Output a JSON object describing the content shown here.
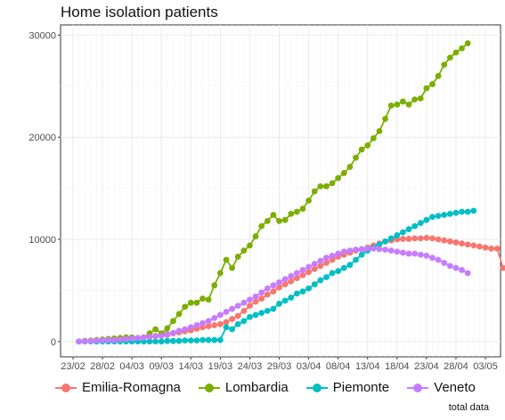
{
  "chart_data": {
    "type": "line",
    "title": "Home isolation patients",
    "caption": "total data",
    "xlabel": "",
    "ylabel": "",
    "ylim": [
      -1500,
      31000
    ],
    "y_ticks": [
      0,
      10000,
      20000,
      30000
    ],
    "x_tick_labels": [
      "23/02",
      "28/02",
      "04/03",
      "09/03",
      "14/03",
      "19/03",
      "24/03",
      "29/03",
      "03/04",
      "08/04",
      "13/04",
      "18/04",
      "23/04",
      "28/04",
      "03/05"
    ],
    "x_start_date": "2020-02-24",
    "grid": true,
    "legend_position": "bottom",
    "series": [
      {
        "name": "Emilia-Romagna",
        "color": "#F8766D",
        "values": [
          0,
          0,
          50,
          100,
          120,
          150,
          200,
          250,
          300,
          300,
          350,
          400,
          450,
          550,
          650,
          750,
          800,
          900,
          1000,
          1100,
          1250,
          1400,
          1500,
          1600,
          1700,
          1900,
          2200,
          2500,
          3000,
          3500,
          3900,
          4200,
          4600,
          4900,
          5300,
          5600,
          5900,
          6200,
          6500,
          6800,
          7100,
          7400,
          7700,
          8000,
          8300,
          8500,
          8700,
          8900,
          9000,
          9200,
          9400,
          9600,
          9800,
          9900,
          10000,
          10050,
          10050,
          10100,
          10100,
          10150,
          10100,
          10000,
          9900,
          9800,
          9700,
          9600,
          9500,
          9400,
          9300,
          9200,
          9100,
          9100,
          7200,
          7100
        ]
      },
      {
        "name": "Lombardia",
        "color": "#7CAE00",
        "values": [
          0,
          50,
          100,
          150,
          200,
          250,
          300,
          350,
          400,
          400,
          350,
          400,
          800,
          1200,
          800,
          1300,
          2000,
          2700,
          3400,
          3800,
          3800,
          4200,
          4100,
          5500,
          6700,
          8000,
          7200,
          8300,
          8900,
          9400,
          10300,
          11300,
          11800,
          12400,
          11800,
          11900,
          12500,
          12700,
          13000,
          13800,
          14700,
          15200,
          15200,
          15500,
          16000,
          16500,
          17100,
          18000,
          18800,
          19200,
          19900,
          20600,
          21800,
          23100,
          23200,
          23500,
          23200,
          23700,
          23800,
          24800,
          25200,
          26000,
          27100,
          27800,
          28300,
          28700,
          29200
        ]
      },
      {
        "name": "Piemonte",
        "color": "#00BFC4",
        "values": [
          0,
          0,
          0,
          0,
          0,
          0,
          0,
          0,
          0,
          0,
          0,
          0,
          0,
          0,
          0,
          50,
          50,
          50,
          100,
          100,
          100,
          150,
          150,
          150,
          150,
          1400,
          1200,
          1700,
          2000,
          2400,
          2600,
          2800,
          3000,
          3200,
          3700,
          4000,
          4300,
          4700,
          4900,
          5200,
          5600,
          6000,
          6300,
          6700,
          6900,
          7200,
          7500,
          8000,
          8500,
          8900,
          9200,
          9500,
          9800,
          10100,
          10400,
          10700,
          11000,
          11300,
          11600,
          11900,
          12200,
          12300,
          12400,
          12500,
          12600,
          12700,
          12700,
          12800
        ]
      },
      {
        "name": "Veneto",
        "color": "#C77CFF",
        "values": [
          0,
          0,
          50,
          100,
          100,
          150,
          150,
          200,
          250,
          300,
          350,
          400,
          450,
          500,
          550,
          650,
          850,
          1050,
          1200,
          1400,
          1600,
          1800,
          2000,
          2300,
          2600,
          2900,
          3200,
          3500,
          3800,
          4100,
          4400,
          4800,
          5200,
          5500,
          5800,
          6100,
          6400,
          6700,
          7000,
          7300,
          7600,
          7900,
          8200,
          8400,
          8600,
          8800,
          8900,
          9000,
          9050,
          9100,
          9100,
          9050,
          9000,
          8900,
          8800,
          8700,
          8600,
          8600,
          8500,
          8400,
          8200,
          8000,
          7700,
          7400,
          7200,
          7000,
          6700
        ]
      }
    ]
  }
}
